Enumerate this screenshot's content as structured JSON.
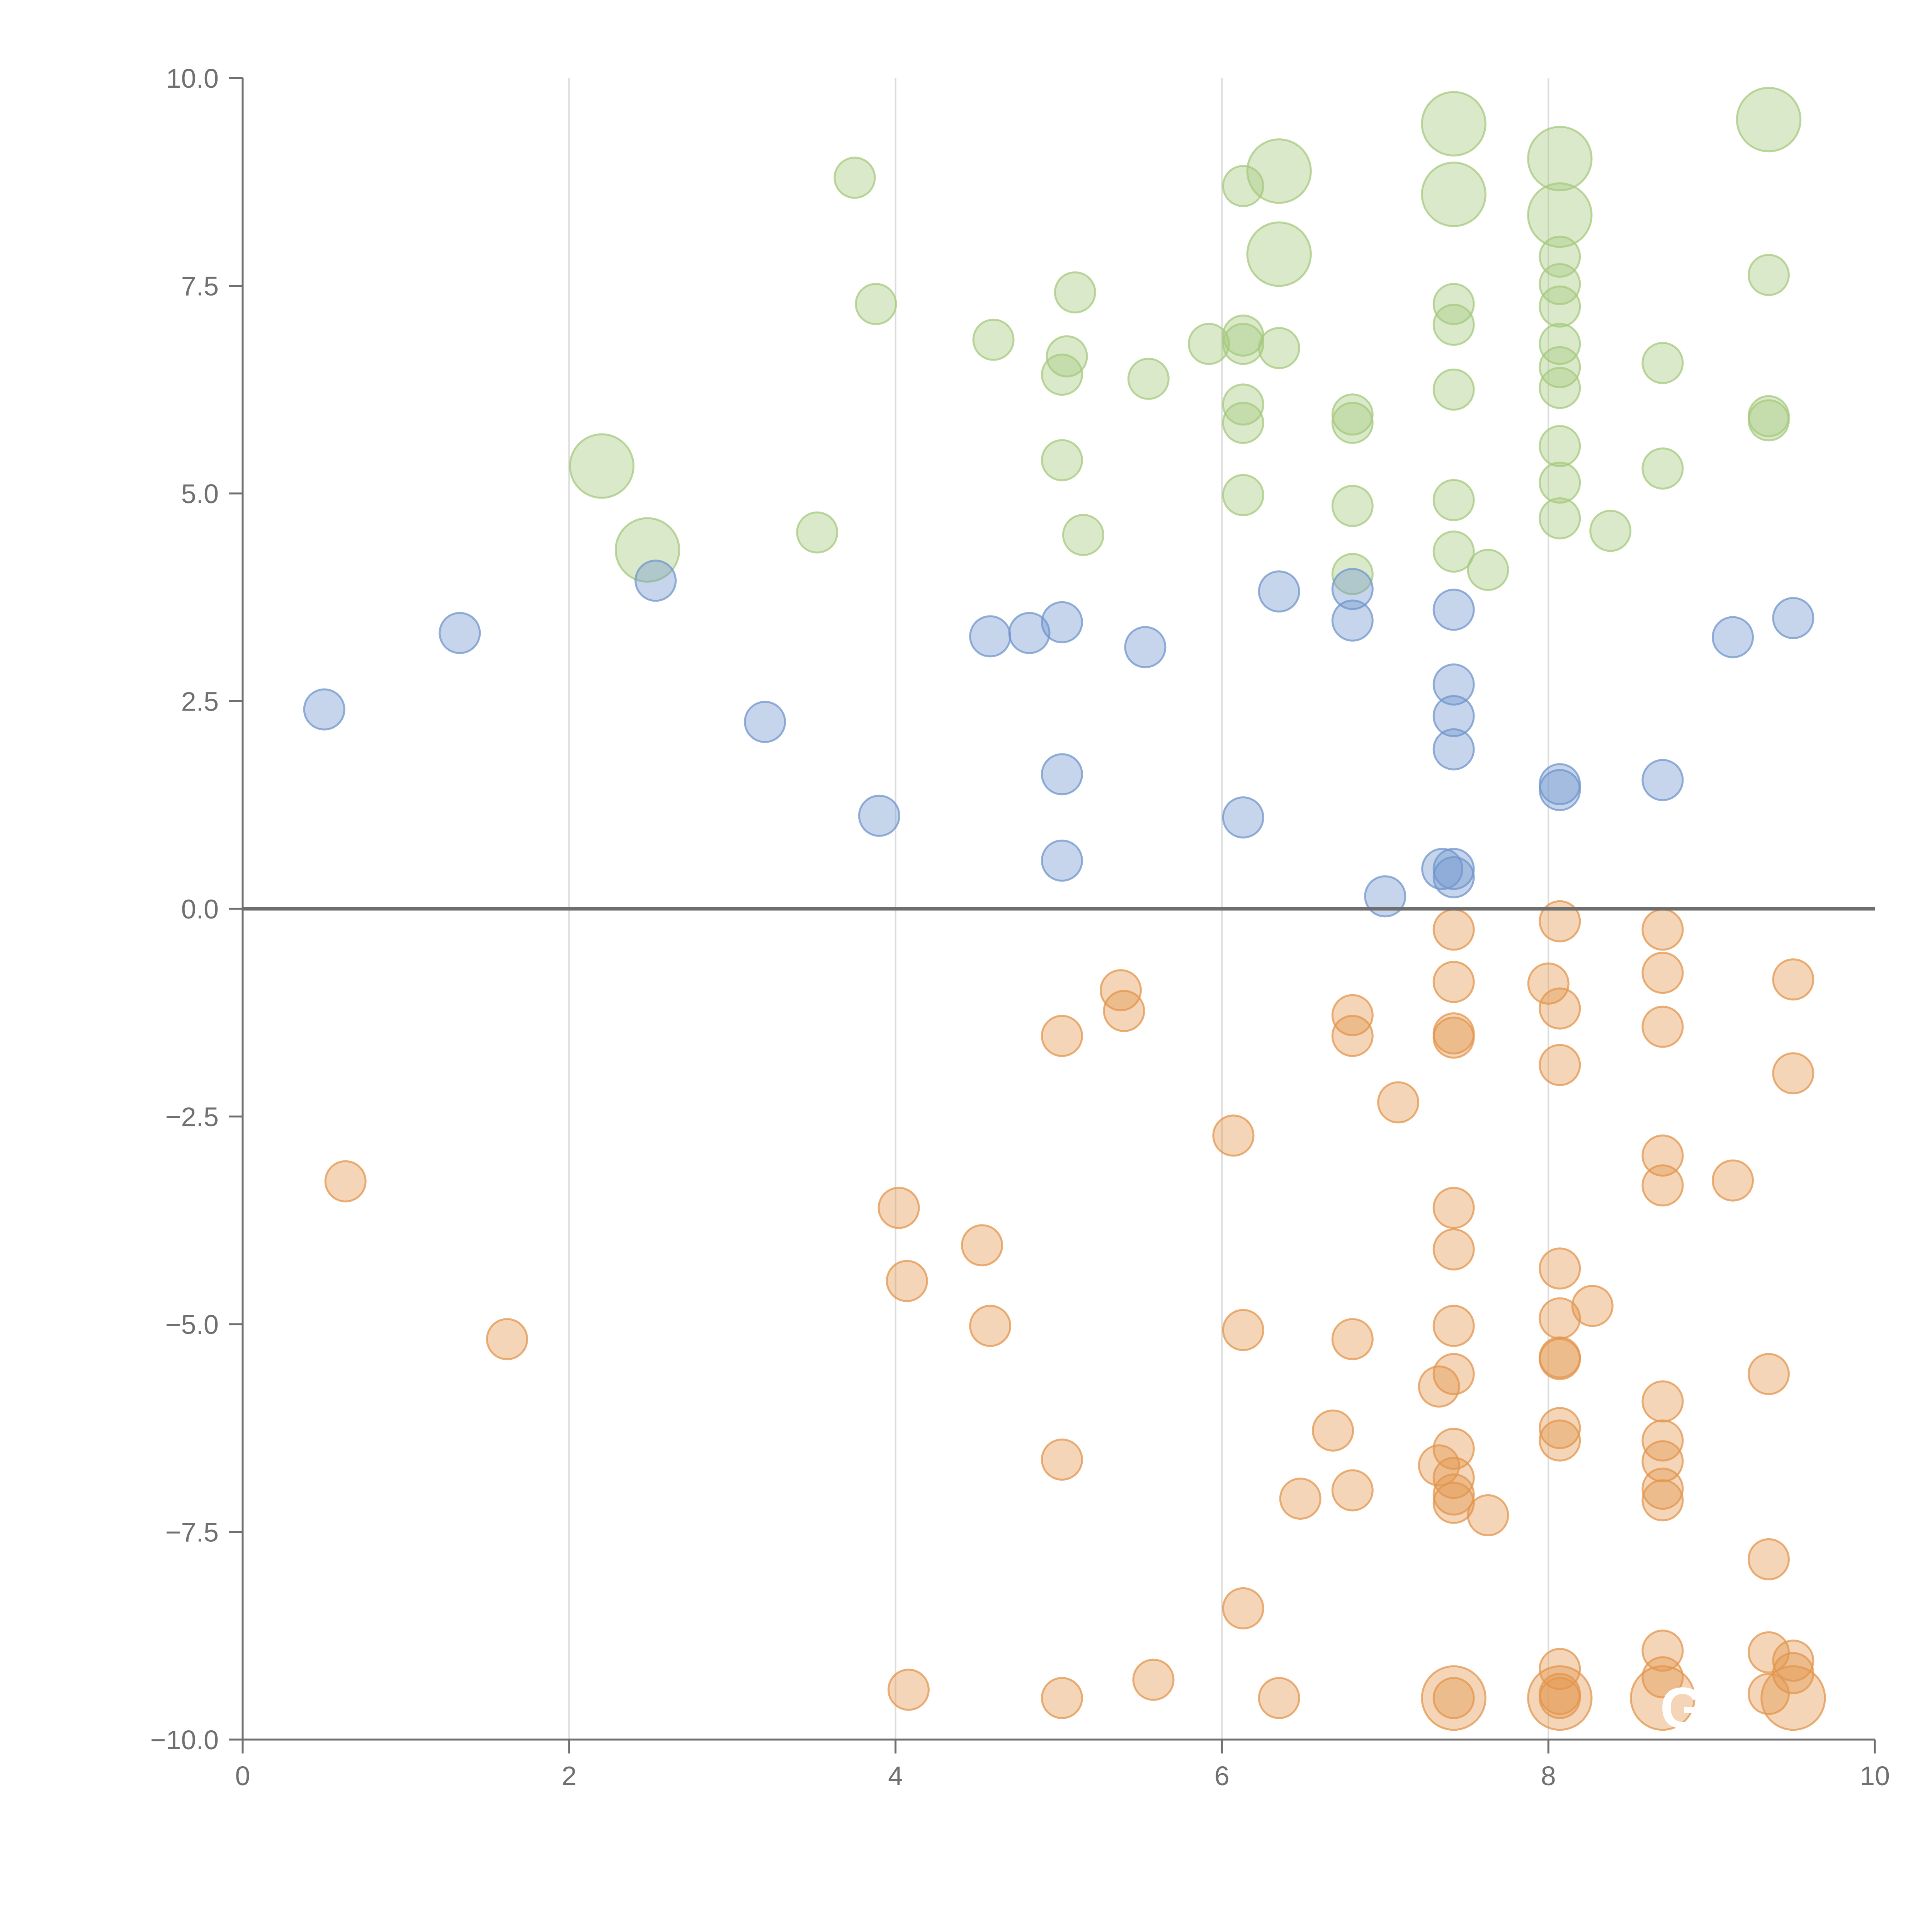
{
  "chart_data": {
    "type": "scatter",
    "title": "",
    "xlabel": "",
    "ylabel": "",
    "xlim": [
      0,
      10
    ],
    "ylim": [
      -10,
      10
    ],
    "grid": "vertical lines at x ticks",
    "legend": "none",
    "x_ticks": [
      "0",
      "2",
      "4",
      "6",
      "8",
      "10"
    ],
    "y_ticks": [
      "10.0",
      "7.5",
      "5.0",
      "2.5",
      "0.0",
      "−2.5",
      "−5.0",
      "−7.5",
      "−10.0"
    ],
    "zero_line": true,
    "marker_opacity": 0.4,
    "annotations": [
      {
        "text": "GA",
        "x": 8.95,
        "y": -9.65
      }
    ],
    "series": [
      {
        "color": "#a6c97d",
        "points": [
          [
            3.75,
            8.8,
            1
          ],
          [
            3.88,
            7.28,
            1
          ],
          [
            3.52,
            4.53,
            1
          ],
          [
            4.6,
            6.85,
            1
          ],
          [
            5.1,
            7.42,
            1
          ],
          [
            5.05,
            6.65,
            1
          ],
          [
            5.02,
            6.43,
            1
          ],
          [
            5.02,
            5.4,
            1
          ],
          [
            5.15,
            4.5,
            1
          ],
          [
            5.55,
            6.38,
            1
          ],
          [
            5.92,
            6.8,
            1
          ],
          [
            6.13,
            6.9,
            1
          ],
          [
            6.13,
            6.8,
            1
          ],
          [
            6.35,
            6.75,
            1
          ],
          [
            6.13,
            6.07,
            1
          ],
          [
            6.13,
            5.85,
            1
          ],
          [
            6.13,
            4.98,
            1
          ],
          [
            6.13,
            8.7,
            1
          ],
          [
            6.8,
            5.95,
            1
          ],
          [
            6.8,
            5.85,
            1
          ],
          [
            6.8,
            4.85,
            1
          ],
          [
            6.8,
            4.03,
            1
          ],
          [
            7.42,
            7.28,
            1
          ],
          [
            7.42,
            7.03,
            1
          ],
          [
            7.42,
            6.25,
            1
          ],
          [
            7.42,
            4.92,
            1
          ],
          [
            7.42,
            4.3,
            1
          ],
          [
            7.63,
            4.08,
            1
          ],
          [
            8.07,
            7.85,
            1
          ],
          [
            8.07,
            7.52,
            1
          ],
          [
            8.07,
            7.25,
            1
          ],
          [
            8.07,
            6.8,
            1
          ],
          [
            8.07,
            6.52,
            1
          ],
          [
            8.07,
            6.27,
            1
          ],
          [
            8.07,
            5.57,
            1
          ],
          [
            8.07,
            5.13,
            1
          ],
          [
            8.07,
            4.7,
            1
          ],
          [
            8.38,
            4.55,
            1
          ],
          [
            8.7,
            6.57,
            1
          ],
          [
            8.7,
            5.3,
            1
          ],
          [
            9.35,
            7.63,
            1
          ],
          [
            9.35,
            5.93,
            1
          ],
          [
            9.35,
            5.88,
            1
          ],
          [
            2.2,
            5.33,
            2.5
          ],
          [
            2.48,
            4.32,
            2.5
          ],
          [
            6.35,
            8.88,
            2.5
          ],
          [
            6.35,
            7.88,
            2.5
          ],
          [
            7.42,
            9.45,
            2.5
          ],
          [
            7.42,
            8.6,
            2.5
          ],
          [
            8.07,
            9.03,
            2.5
          ],
          [
            8.07,
            8.35,
            2.5
          ],
          [
            9.35,
            9.5,
            2.5
          ]
        ]
      },
      {
        "color": "#7096cc",
        "points": [
          [
            0.5,
            2.4,
            1
          ],
          [
            1.33,
            3.32,
            1
          ],
          [
            2.53,
            3.95,
            1
          ],
          [
            3.2,
            2.25,
            1
          ],
          [
            3.9,
            1.12,
            1
          ],
          [
            4.58,
            3.28,
            1
          ],
          [
            4.82,
            3.32,
            1
          ],
          [
            5.02,
            3.45,
            1
          ],
          [
            5.53,
            3.15,
            1
          ],
          [
            5.02,
            1.62,
            1
          ],
          [
            5.02,
            0.58,
            1
          ],
          [
            6.13,
            1.1,
            1
          ],
          [
            6.35,
            3.82,
            1
          ],
          [
            6.8,
            3.85,
            1
          ],
          [
            6.8,
            3.47,
            1
          ],
          [
            7.0,
            0.15,
            1
          ],
          [
            7.42,
            3.6,
            1
          ],
          [
            7.42,
            2.7,
            1
          ],
          [
            7.42,
            2.32,
            1
          ],
          [
            7.42,
            1.92,
            1
          ],
          [
            7.35,
            0.48,
            1
          ],
          [
            7.42,
            0.48,
            1
          ],
          [
            7.42,
            0.38,
            1
          ],
          [
            8.07,
            1.5,
            1
          ],
          [
            8.07,
            1.43,
            1
          ],
          [
            8.7,
            1.55,
            1
          ],
          [
            9.13,
            3.27,
            1
          ],
          [
            9.5,
            3.5,
            1
          ]
        ]
      },
      {
        "color": "#e3964e",
        "points": [
          [
            0.63,
            -3.28,
            1
          ],
          [
            1.62,
            -5.18,
            1
          ],
          [
            4.02,
            -3.6,
            1
          ],
          [
            4.07,
            -4.48,
            1
          ],
          [
            4.08,
            -9.4,
            1
          ],
          [
            4.53,
            -4.05,
            1
          ],
          [
            4.58,
            -5.02,
            1
          ],
          [
            5.02,
            -1.53,
            1
          ],
          [
            5.02,
            -6.63,
            1
          ],
          [
            5.02,
            -9.5,
            1
          ],
          [
            5.38,
            -0.98,
            1
          ],
          [
            5.4,
            -1.23,
            1
          ],
          [
            5.58,
            -9.28,
            1
          ],
          [
            6.07,
            -2.73,
            1
          ],
          [
            6.13,
            -5.07,
            1
          ],
          [
            6.13,
            -8.42,
            1
          ],
          [
            6.35,
            -9.5,
            1
          ],
          [
            6.48,
            -7.1,
            1
          ],
          [
            6.68,
            -6.28,
            1
          ],
          [
            6.8,
            -1.28,
            1
          ],
          [
            6.8,
            -1.53,
            1
          ],
          [
            6.8,
            -5.18,
            1
          ],
          [
            6.8,
            -7.0,
            1
          ],
          [
            7.08,
            -2.33,
            1
          ],
          [
            7.42,
            -0.25,
            1
          ],
          [
            7.42,
            -0.88,
            1
          ],
          [
            7.42,
            -1.5,
            1
          ],
          [
            7.42,
            -1.55,
            1
          ],
          [
            7.42,
            -3.6,
            1
          ],
          [
            7.42,
            -4.1,
            1
          ],
          [
            7.42,
            -5.02,
            1
          ],
          [
            7.42,
            -5.6,
            1
          ],
          [
            7.33,
            -5.75,
            1
          ],
          [
            7.42,
            -6.5,
            1
          ],
          [
            7.33,
            -6.7,
            1
          ],
          [
            7.42,
            -6.85,
            1
          ],
          [
            7.42,
            -7.05,
            1
          ],
          [
            7.42,
            -7.15,
            1
          ],
          [
            7.63,
            -7.3,
            1
          ],
          [
            7.42,
            -9.5,
            1
          ],
          [
            8.07,
            -0.15,
            1
          ],
          [
            8.0,
            -0.9,
            1
          ],
          [
            8.07,
            -1.2,
            1
          ],
          [
            8.07,
            -1.88,
            1
          ],
          [
            8.07,
            -4.33,
            1
          ],
          [
            8.07,
            -4.93,
            1
          ],
          [
            8.07,
            -5.4,
            1
          ],
          [
            8.07,
            -5.42,
            1
          ],
          [
            8.27,
            -4.78,
            1
          ],
          [
            8.07,
            -6.25,
            1
          ],
          [
            8.07,
            -6.4,
            1
          ],
          [
            8.07,
            -9.15,
            1
          ],
          [
            8.07,
            -9.45,
            1
          ],
          [
            8.07,
            -9.5,
            1
          ],
          [
            8.7,
            -0.25,
            1
          ],
          [
            8.7,
            -0.77,
            1
          ],
          [
            8.7,
            -1.42,
            1
          ],
          [
            8.7,
            -2.97,
            1
          ],
          [
            8.7,
            -3.33,
            1
          ],
          [
            8.7,
            -5.93,
            1
          ],
          [
            8.7,
            -6.4,
            1
          ],
          [
            8.7,
            -6.65,
            1
          ],
          [
            8.7,
            -6.98,
            1
          ],
          [
            8.7,
            -7.12,
            1
          ],
          [
            8.7,
            -8.93,
            1
          ],
          [
            8.7,
            -9.25,
            1
          ],
          [
            9.13,
            -3.27,
            1
          ],
          [
            9.35,
            -5.6,
            1
          ],
          [
            9.35,
            -7.83,
            1
          ],
          [
            9.35,
            -8.95,
            1
          ],
          [
            9.35,
            -9.45,
            1
          ],
          [
            9.5,
            -0.85,
            1
          ],
          [
            9.5,
            -1.98,
            1
          ],
          [
            9.5,
            -9.05,
            1
          ],
          [
            9.5,
            -9.2,
            1
          ],
          [
            7.42,
            -9.5,
            2.5
          ],
          [
            8.07,
            -9.5,
            2.5
          ],
          [
            8.7,
            -9.5,
            2.5
          ],
          [
            9.5,
            -9.5,
            2.5
          ]
        ]
      }
    ]
  }
}
